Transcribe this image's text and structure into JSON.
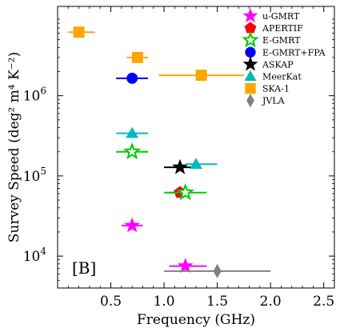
{
  "chart_data": {
    "type": "scatter",
    "panel_label": "[B]",
    "xlabel": "Frequency (GHz)",
    "ylabel": "Survey Speed (deg² m⁴ K⁻²)",
    "x_scale": "linear",
    "y_scale": "log",
    "xlim": [
      0.0,
      2.6
    ],
    "ylim": [
      4000,
      13000000
    ],
    "x_ticks": [
      0.5,
      1.0,
      1.5,
      2.0,
      2.5
    ],
    "x_tick_labels": [
      "0.5",
      "1.0",
      "1.5",
      "2.0",
      "2.5"
    ],
    "y_ticks": [
      10000,
      100000,
      1000000
    ],
    "y_tick_labels": [
      "10",
      "10",
      "10"
    ],
    "y_tick_exponents": [
      "4",
      "5",
      "6"
    ],
    "grid": false,
    "legend_position": "top-right",
    "series": [
      {
        "name": "u-GMRT",
        "marker": "star-filled",
        "color": "#ff00ff",
        "points": [
          {
            "x": 0.7,
            "y": 24000,
            "x_lo": 0.6,
            "x_hi": 0.8
          },
          {
            "x": 1.2,
            "y": 7500,
            "x_lo": 1.05,
            "x_hi": 1.4
          }
        ]
      },
      {
        "name": "APERTIF",
        "marker": "pentagon",
        "color": "#ff0000",
        "points": [
          {
            "x": 1.15,
            "y": 62000,
            "x_lo": 1.05,
            "x_hi": 1.25
          }
        ]
      },
      {
        "name": "E-GMRT",
        "marker": "star-open",
        "color": "#00cc00",
        "points": [
          {
            "x": 0.7,
            "y": 200000,
            "x_lo": 0.55,
            "x_hi": 0.85
          },
          {
            "x": 1.2,
            "y": 62000,
            "x_lo": 1.0,
            "x_hi": 1.4
          }
        ]
      },
      {
        "name": "E-GMRT+FPA",
        "marker": "circle",
        "color": "#0000ff",
        "points": [
          {
            "x": 0.7,
            "y": 1650000,
            "x_lo": 0.55,
            "x_hi": 0.85
          }
        ]
      },
      {
        "name": "ASKAP",
        "marker": "star-filled",
        "color": "#000000",
        "points": [
          {
            "x": 1.15,
            "y": 128000,
            "x_lo": 1.0,
            "x_hi": 1.3
          }
        ]
      },
      {
        "name": "MeerKat",
        "marker": "triangle",
        "color": "#00bbbb",
        "points": [
          {
            "x": 0.7,
            "y": 340000,
            "x_lo": 0.55,
            "x_hi": 0.85
          },
          {
            "x": 1.3,
            "y": 140000,
            "x_lo": 1.2,
            "x_hi": 1.5
          }
        ]
      },
      {
        "name": "SKA-1",
        "marker": "square",
        "color": "#ffa500",
        "points": [
          {
            "x": 0.2,
            "y": 6200000,
            "x_lo": 0.1,
            "x_hi": 0.35
          },
          {
            "x": 0.75,
            "y": 3000000,
            "x_lo": 0.65,
            "x_hi": 0.85
          },
          {
            "x": 1.35,
            "y": 1800000,
            "x_lo": 0.95,
            "x_hi": 1.75
          }
        ]
      },
      {
        "name": "JVLA",
        "marker": "thin-diamond",
        "color": "#808080",
        "points": [
          {
            "x": 1.5,
            "y": 6500,
            "x_lo": 1.0,
            "x_hi": 2.0
          }
        ]
      }
    ]
  }
}
